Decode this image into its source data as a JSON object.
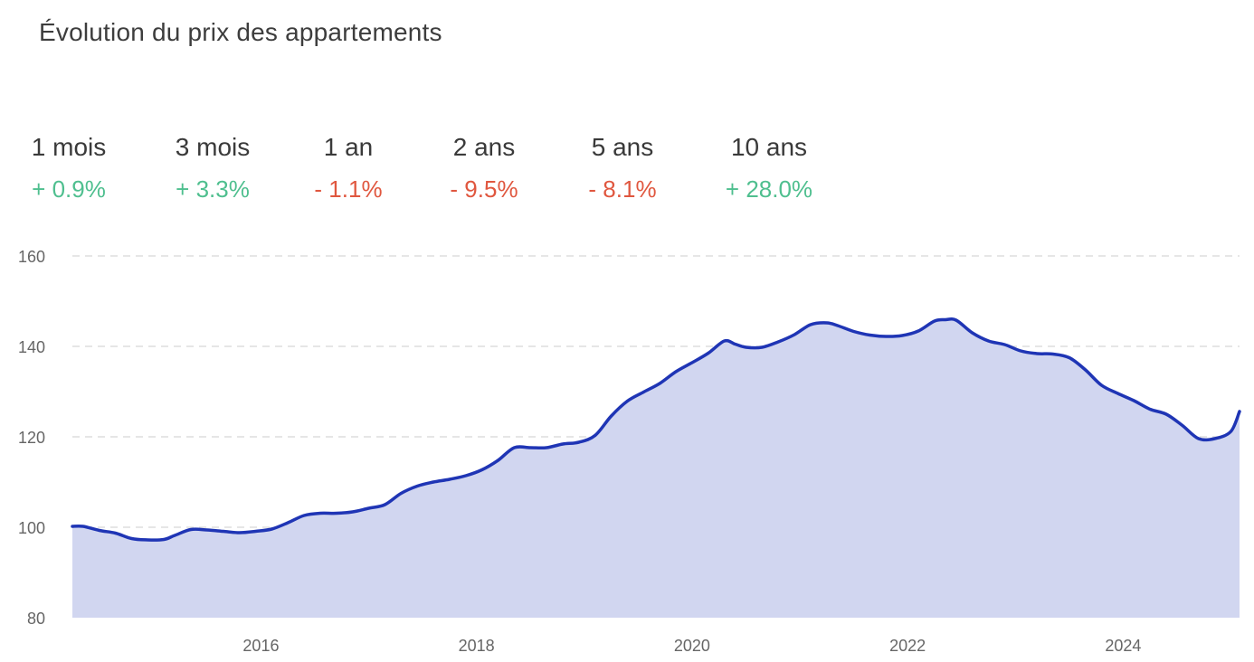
{
  "title": "Évolution du prix des appartements",
  "stats": [
    {
      "label": "1 mois",
      "value": "+ 0.9%",
      "trend": "up"
    },
    {
      "label": "3 mois",
      "value": "+ 3.3%",
      "trend": "up"
    },
    {
      "label": "1 an",
      "value": "- 1.1%",
      "trend": "down"
    },
    {
      "label": "2 ans",
      "value": "- 9.5%",
      "trend": "down"
    },
    {
      "label": "5 ans",
      "value": "- 8.1%",
      "trend": "down"
    },
    {
      "label": "10 ans",
      "value": "+ 28.0%",
      "trend": "up"
    }
  ],
  "colors": {
    "up": "#4fbf8f",
    "down": "#e0573f",
    "line": "#1f35b5",
    "area": "#d1d6f0",
    "grid": "#dddddd"
  },
  "chart_data": {
    "type": "area",
    "title": "",
    "xlabel": "",
    "ylabel": "",
    "ylim": [
      80,
      160
    ],
    "xlim": [
      2014.25,
      2025.08
    ],
    "yticks": [
      80,
      100,
      120,
      140,
      160
    ],
    "xticks": [
      2016,
      2018,
      2020,
      2022,
      2024
    ],
    "grid": "horizontal dashed",
    "series": [
      {
        "x": [
          2014.25,
          2014.35,
          2014.5,
          2014.65,
          2014.8,
          2014.95,
          2015.1,
          2015.2,
          2015.35,
          2015.5,
          2015.65,
          2015.8,
          2015.95,
          2016.1,
          2016.25,
          2016.4,
          2016.55,
          2016.7,
          2016.85,
          2017.0,
          2017.15,
          2017.3,
          2017.45,
          2017.6,
          2017.75,
          2017.9,
          2018.05,
          2018.2,
          2018.35,
          2018.5,
          2018.65,
          2018.8,
          2018.95,
          2019.1,
          2019.25,
          2019.4,
          2019.55,
          2019.7,
          2019.85,
          2020.0,
          2020.15,
          2020.3,
          2020.4,
          2020.5,
          2020.65,
          2020.8,
          2020.95,
          2021.1,
          2021.25,
          2021.35,
          2021.5,
          2021.65,
          2021.8,
          2021.95,
          2022.1,
          2022.25,
          2022.35,
          2022.45,
          2022.6,
          2022.75,
          2022.9,
          2023.05,
          2023.2,
          2023.35,
          2023.5,
          2023.65,
          2023.8,
          2023.95,
          2024.1,
          2024.25,
          2024.4,
          2024.55,
          2024.7,
          2024.85,
          2025.0,
          2025.08
        ],
        "y": [
          100.2,
          100.2,
          99.3,
          98.7,
          97.5,
          97.2,
          97.3,
          98.2,
          99.5,
          99.4,
          99.1,
          98.8,
          99.1,
          99.6,
          101.0,
          102.6,
          103.1,
          103.1,
          103.4,
          104.2,
          105.0,
          107.5,
          109.1,
          110.0,
          110.6,
          111.4,
          112.7,
          114.8,
          117.6,
          117.6,
          117.6,
          118.4,
          118.8,
          120.3,
          124.6,
          127.9,
          129.9,
          131.8,
          134.4,
          136.4,
          138.5,
          141.2,
          140.5,
          139.8,
          139.8,
          141.0,
          142.6,
          144.8,
          145.2,
          144.6,
          143.3,
          142.5,
          142.2,
          142.4,
          143.4,
          145.6,
          145.9,
          145.8,
          143.0,
          141.2,
          140.4,
          139.0,
          138.4,
          138.3,
          137.5,
          134.8,
          131.4,
          129.6,
          128.0,
          126.1,
          125.0,
          122.5,
          119.6,
          119.6,
          121.2,
          125.6
        ]
      }
    ]
  }
}
